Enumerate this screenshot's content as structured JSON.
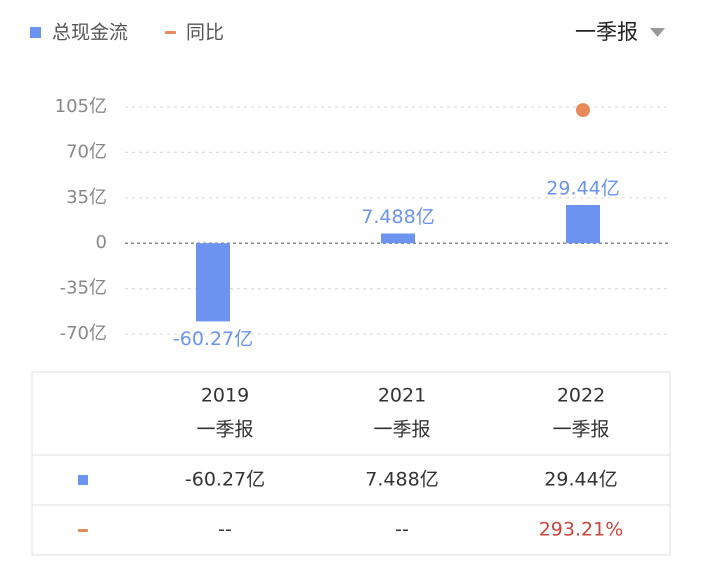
{
  "chart_data": {
    "type": "bar",
    "period": "一季报",
    "categories": [
      "2019",
      "2021",
      "2022"
    ],
    "series": [
      {
        "name": "总现金流",
        "color": "#6b93ef",
        "values": [
          -60.27,
          7.488,
          29.44
        ],
        "value_labels": [
          "-60.27亿",
          "7.488亿",
          "29.44亿"
        ]
      },
      {
        "name": "同比",
        "color": "#e8895a",
        "axis": "y2",
        "values": [
          null,
          null,
          293.21
        ],
        "value_labels": [
          "--",
          "--",
          "293.21%"
        ]
      }
    ],
    "ylim": [
      -70,
      105
    ],
    "yticks": [
      {
        "value": 105,
        "label": "105亿"
      },
      {
        "value": 70,
        "label": "70亿"
      },
      {
        "value": 35,
        "label": "35亿"
      },
      0,
      {
        "value": -35,
        "label": "-35亿"
      },
      {
        "value": -70,
        "label": "-70亿"
      }
    ],
    "y2lim": [
      -200,
      300
    ],
    "grid": true,
    "up_color": "#c8453b"
  }
}
